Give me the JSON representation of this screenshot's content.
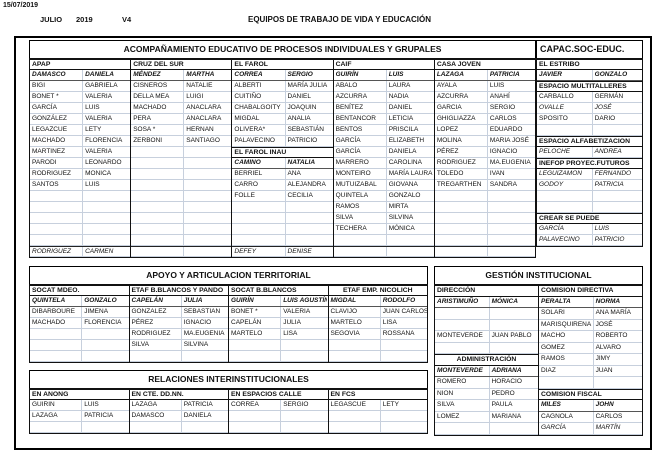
{
  "header": {
    "date": "15/07/2019",
    "month": "JULIO",
    "year": "2019",
    "version": "V4",
    "title": "EQUIPOS DE TRABAJO DE VIDA Y EDUCACIÓN"
  },
  "colors": {
    "grid": "#c7d0dd",
    "border": "#000000",
    "text": "#111111",
    "background": "#ffffff"
  },
  "acompanamiento": {
    "title": "ACOMPAÑAMIENTO EDUCATIVO DE PROCESOS INDIVIDUALES Y GRUPALES",
    "columns": [
      {
        "blocks": [
          {
            "header": "APAP",
            "rows": [
              [
                "DAMASCO",
                "DANIELA",
                "lead"
              ],
              [
                "BIGI",
                "GABRIELA"
              ],
              [
                "BONET *",
                "VALERIA"
              ],
              [
                "GARCÍA",
                "LUIS"
              ],
              [
                "GONZÁLEZ",
                "VALERIA"
              ],
              [
                "LEGAZCUE",
                "LETY"
              ],
              [
                "MACHADO",
                "FLORENCIA"
              ],
              [
                "MARTINEZ",
                "VALERIA"
              ],
              [
                "PARODI",
                "LEONARDO"
              ],
              [
                "RODRIGUEZ",
                "MONICA"
              ],
              [
                "SANTOS",
                "LUIS"
              ],
              [
                "",
                ""
              ],
              [
                "",
                ""
              ],
              [
                "",
                ""
              ],
              [
                "",
                ""
              ],
              [
                "",
                ""
              ],
              [
                "RODRIGUEZ",
                "CARMEN",
                "i sep"
              ]
            ]
          }
        ]
      },
      {
        "blocks": [
          {
            "header": "CRUZ DEL SUR",
            "rows": [
              [
                "MÉNDEZ",
                "MARTHA",
                "lead"
              ],
              [
                "CISNEROS",
                "NATALIE"
              ],
              [
                "DELLA MEA",
                "LUIGI"
              ],
              [
                "MACHADO",
                "ANACLARA"
              ],
              [
                "PERA",
                "ANACLARA"
              ],
              [
                "SOSA *",
                "HERNAN"
              ],
              [
                "ZERBONI",
                "SANTIAGO"
              ],
              [
                "",
                ""
              ],
              [
                "",
                ""
              ],
              [
                "",
                ""
              ],
              [
                "",
                ""
              ],
              [
                "",
                ""
              ],
              [
                "",
                ""
              ],
              [
                "",
                ""
              ],
              [
                "",
                ""
              ],
              [
                "",
                ""
              ],
              [
                "",
                "",
                "sep"
              ]
            ]
          }
        ]
      },
      {
        "blocks": [
          {
            "header": "EL FAROL",
            "rows": [
              [
                "CORREA",
                "SERGIO",
                "lead"
              ],
              [
                "ALBERTI",
                "MARÍA JULIA"
              ],
              [
                "CUITIÑO",
                "DANIEL"
              ],
              [
                "CHABALGOITY",
                "JOAQUIN"
              ],
              [
                "MIGDAL",
                "ANALIA"
              ],
              [
                "OLIVERA*",
                "SEBASTIÁN"
              ],
              [
                "PALAVECINO",
                "PATRICIO"
              ]
            ]
          },
          {
            "header": "EL FAROL INAU",
            "rows": [
              [
                "CAMINO",
                "NATALIA",
                "lead"
              ],
              [
                "BERRIEL",
                "ANA"
              ],
              [
                "CARRO",
                "ALEJANDRA"
              ],
              [
                "FOLLE",
                "CECILIA"
              ],
              [
                "",
                ""
              ],
              [
                "",
                ""
              ],
              [
                "",
                ""
              ],
              [
                "",
                ""
              ],
              [
                "DEFEY",
                "DENISE",
                "i sep"
              ]
            ]
          }
        ]
      },
      {
        "blocks": [
          {
            "header": "CAIF",
            "rows": [
              [
                "GUIRÍN",
                "LUIS",
                "lead"
              ],
              [
                "ABALO",
                "LAURA"
              ],
              [
                "AZCURRA",
                "NADIA"
              ],
              [
                "BENÍTEZ",
                "DANIEL"
              ],
              [
                "BENTANCOR",
                "LETICIA"
              ],
              [
                "BENTOS",
                "PRISCILA"
              ],
              [
                "GARCÍA",
                "ELIZABETH"
              ],
              [
                "GARCÍA",
                "DANIELA"
              ],
              [
                "MARRERO",
                "CAROLINA"
              ],
              [
                "MONTEIRO",
                "MARÍA LAURA"
              ],
              [
                "MUTUIZABAL",
                "GIOVANA"
              ],
              [
                "QUINTELA",
                "GONZALO"
              ],
              [
                "RAMOS",
                "MIRTA"
              ],
              [
                "SILVA",
                "SILVINA"
              ],
              [
                "TECHERA",
                "MÓNICA"
              ],
              [
                "",
                ""
              ],
              [
                "",
                "",
                "sep"
              ]
            ]
          }
        ]
      },
      {
        "blocks": [
          {
            "header": "CASA JOVEN",
            "rows": [
              [
                "LAZAGA",
                "PATRICIA",
                "lead"
              ],
              [
                "AYALA",
                "LUIS"
              ],
              [
                "AZCURRA",
                "ANAHÍ"
              ],
              [
                "GARCIA",
                "SERGIO"
              ],
              [
                "GHIGLIAZZA",
                "CARLOS"
              ],
              [
                "LOPEZ",
                "EDUARDO"
              ],
              [
                "MOLINA",
                "MARIA JOSÉ"
              ],
              [
                "PÉREZ",
                "IGNACIO"
              ],
              [
                "RODRIGUEZ",
                "MA.EUGENIA"
              ],
              [
                "TOLEDO",
                "IVAN"
              ],
              [
                "TREGARTHEN",
                "SANDRA"
              ],
              [
                "",
                ""
              ],
              [
                "",
                ""
              ],
              [
                "",
                ""
              ],
              [
                "",
                ""
              ],
              [
                "",
                ""
              ],
              [
                "",
                "",
                "sep"
              ]
            ]
          }
        ]
      }
    ]
  },
  "capacitacion": {
    "title": "CAPAC.SOC-EDUC.",
    "columns": [
      {
        "blocks": [
          {
            "header": "EL ESTRIBO",
            "rows": [
              [
                "JAVIER",
                "GONZALO",
                "lead"
              ]
            ]
          },
          {
            "header": "ESPACIO MULTITALLERES",
            "rows": [
              [
                "CARBALLO",
                "GERMÁN"
              ],
              [
                "OVALLE",
                "JOSÉ",
                "i"
              ],
              [
                "SPOSITO",
                "DARIO"
              ],
              [
                "",
                ""
              ]
            ]
          },
          {
            "header": "ESPACIO ALFABETIZACION",
            "rows": [
              [
                "PELOCHE",
                "ANDREA",
                "i"
              ]
            ]
          },
          {
            "header": "INEFOP PROYEC.FUTUROS",
            "rows": [
              [
                "LEGUIZAMON",
                "FERNANDO",
                "i"
              ],
              [
                "GODOY",
                "PATRICIA",
                "i"
              ],
              [
                "",
                ""
              ],
              [
                "",
                ""
              ]
            ]
          },
          {
            "header": "CREAR SE PUEDE",
            "rows": [
              [
                "GARCÍA",
                "LUIS",
                "i"
              ],
              [
                "PALAVECINO",
                "PATRICIO",
                "i"
              ]
            ]
          }
        ]
      }
    ]
  },
  "apoyo": {
    "title": "APOYO Y ARTICULACION TERRITORIAL",
    "columns": [
      {
        "blocks": [
          {
            "header": "SOCAT MDEO.",
            "rows": [
              [
                "QUINTELA",
                "GONZALO",
                "lead"
              ],
              [
                "DIBARBOURE",
                "JIMENA"
              ],
              [
                "MACHADO",
                "FLORENCIA"
              ],
              [
                "",
                ""
              ],
              [
                "",
                ""
              ],
              [
                "",
                ""
              ]
            ]
          }
        ]
      },
      {
        "blocks": [
          {
            "header": "ETAF B.BLANCOS Y PANDO",
            "rows": [
              [
                "CAPELÁN",
                "JULIA",
                "lead"
              ],
              [
                "GONZALEZ",
                "SEBASTIAN"
              ],
              [
                "PÉREZ",
                "IGNACIO"
              ],
              [
                "RODRIGUEZ",
                "MA.EUGENIA"
              ],
              [
                "SILVA",
                "SILVINA"
              ],
              [
                "",
                ""
              ]
            ]
          }
        ]
      },
      {
        "blocks": [
          {
            "header": "SOCAT B.BLANCOS",
            "rows": [
              [
                "GUIRÍN",
                "LUIS AGUSTÍN",
                "lead"
              ],
              [
                "BONET *",
                "VALERIA"
              ],
              [
                "CAPELÁN",
                "JULIA"
              ],
              [
                "MARTELO",
                "LISA"
              ],
              [
                "",
                ""
              ],
              [
                "",
                ""
              ]
            ]
          }
        ]
      },
      {
        "blocks": [
          {
            "header": "ETAF EMP. NICOLICH",
            "center": true,
            "rows": [
              [
                "MIGDAL",
                "RODOLFO",
                "lead"
              ],
              [
                "CLAVIJO",
                "JUAN CARLOS"
              ],
              [
                "MARTELO",
                "LISA"
              ],
              [
                "SEGOVIA",
                "ROSSANA"
              ],
              [
                "",
                ""
              ],
              [
                "",
                ""
              ]
            ]
          }
        ]
      }
    ]
  },
  "relaciones": {
    "title": "RELACIONES INTERINSTITUCIONALES",
    "columns": [
      {
        "blocks": [
          {
            "header": "EN ANONG",
            "rows": [
              [
                "GUIRIN",
                "LUIS"
              ],
              [
                "LAZAGA",
                "PATRICIA"
              ],
              [
                "",
                ""
              ]
            ]
          }
        ]
      },
      {
        "blocks": [
          {
            "header": "EN CTE. DD.NN.",
            "rows": [
              [
                "LAZAGA",
                "PATRICIA"
              ],
              [
                "DAMASCO",
                "DANIELA"
              ],
              [
                "",
                ""
              ]
            ]
          }
        ]
      },
      {
        "blocks": [
          {
            "header": "EN ESPACIOS CALLE",
            "rows": [
              [
                "CORREA",
                "SERGIO"
              ],
              [
                "",
                ""
              ],
              [
                "",
                ""
              ]
            ]
          }
        ]
      },
      {
        "blocks": [
          {
            "header": "EN FCS",
            "rows": [
              [
                "LEGASCUE",
                "LETY"
              ],
              [
                "",
                ""
              ],
              [
                "",
                ""
              ]
            ]
          }
        ]
      }
    ]
  },
  "gestion": {
    "title": "GESTIÓN INSTITUCIONAL",
    "columns": [
      {
        "blocks": [
          {
            "header": "DIRECCIÓN",
            "rows": [
              [
                "ARISTIMUÑO",
                "MÓNICA",
                "lead"
              ],
              [
                "",
                ""
              ],
              [
                "",
                ""
              ],
              [
                "MONTEVERDE",
                "JUAN PABLO"
              ],
              [
                "",
                ""
              ]
            ]
          },
          {
            "header": "ADMINISTRACIÓN",
            "center": true,
            "rows": [
              [
                "MONTEVERDE",
                "ADRIANA",
                "lead"
              ],
              [
                "ROMERO",
                "HORACIO"
              ],
              [
                "NION",
                "PEDRO"
              ],
              [
                "SILVA",
                "PAULA"
              ],
              [
                "LOMEZ",
                "MARIANA"
              ],
              [
                "",
                ""
              ]
            ]
          }
        ]
      },
      {
        "blocks": [
          {
            "header": "COMISION DIRECTIVA",
            "rows": [
              [
                "PERALTA",
                "NORMA",
                "lead"
              ],
              [
                "SOLARI",
                "ANA MARÍA"
              ],
              [
                "MARISQUIRENA",
                "JOSÉ"
              ],
              [
                "MACHO",
                "ROBERTO"
              ],
              [
                "GOMEZ",
                "ALVARO"
              ],
              [
                "RAMOS",
                "JIMY"
              ],
              [
                "DIAZ",
                "JUAN"
              ],
              [
                "",
                ""
              ]
            ]
          },
          {
            "header": "COMISION FISCAL",
            "rows": [
              [
                "MILES",
                "JOHN",
                "lead"
              ],
              [
                "CAGNOLA",
                "CARLOS"
              ],
              [
                "GARCÍA",
                "MARTÍN",
                "i"
              ]
            ]
          }
        ]
      }
    ]
  }
}
